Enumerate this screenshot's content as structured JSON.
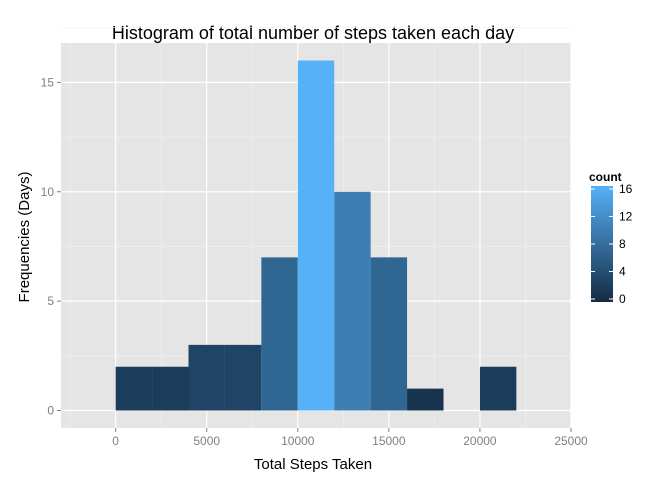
{
  "chart_data": {
    "type": "bar",
    "title": "Histogram of total number of steps taken each day",
    "xlabel": "Total Steps Taken",
    "ylabel": "Frequencies (Days)",
    "xlim": [
      -3000,
      25000
    ],
    "ylim": [
      -0.8,
      16.8
    ],
    "xticks": [
      0,
      5000,
      10000,
      15000,
      20000,
      25000
    ],
    "yticks": [
      0,
      5,
      10,
      15
    ],
    "bins": [
      {
        "x0": 0,
        "x1": 2000,
        "count": 2
      },
      {
        "x0": 2000,
        "x1": 4000,
        "count": 2
      },
      {
        "x0": 4000,
        "x1": 6000,
        "count": 3
      },
      {
        "x0": 6000,
        "x1": 8000,
        "count": 3
      },
      {
        "x0": 8000,
        "x1": 10000,
        "count": 7
      },
      {
        "x0": 10000,
        "x1": 12000,
        "count": 16
      },
      {
        "x0": 12000,
        "x1": 14000,
        "count": 10
      },
      {
        "x0": 14000,
        "x1": 16000,
        "count": 7
      },
      {
        "x0": 16000,
        "x1": 18000,
        "count": 1
      },
      {
        "x0": 18000,
        "x1": 20000,
        "count": 0
      },
      {
        "x0": 20000,
        "x1": 22000,
        "count": 2
      }
    ],
    "fill_scale": {
      "low_color": "#132B43",
      "high_color": "#56B1F7",
      "min": 0,
      "max": 16
    },
    "legend": {
      "title": "count",
      "breaks": [
        0,
        4,
        8,
        12,
        16
      ],
      "placement": "right"
    },
    "grid": true,
    "panel_background": "#E5E5E5",
    "grid_color": "#FFFFFF"
  }
}
